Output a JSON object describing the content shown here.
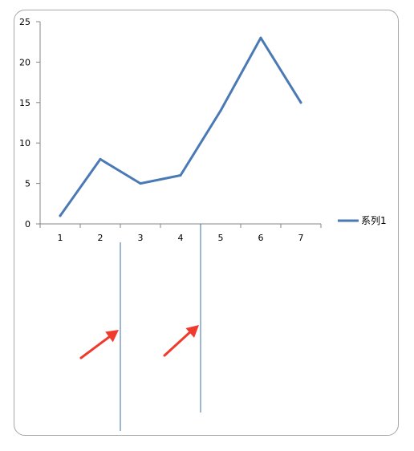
{
  "chart_data": {
    "type": "line",
    "categories": [
      "1",
      "2",
      "3",
      "4",
      "5",
      "6",
      "7"
    ],
    "series": [
      {
        "name": "系列1",
        "values": [
          1,
          8,
          5,
          6,
          14,
          23,
          15
        ],
        "color": "#4a7ab5"
      }
    ],
    "ylim": [
      0,
      25
    ],
    "yticks": [
      0,
      5,
      10,
      15,
      20,
      25
    ],
    "grid": false,
    "legend": "right"
  },
  "annotations": {
    "guide_line_color": "#3b6ea8",
    "arrow_color": "#f03a2e",
    "guides": [
      {
        "between": [
          "2",
          "3"
        ]
      },
      {
        "between": [
          "4",
          "5"
        ]
      }
    ]
  }
}
